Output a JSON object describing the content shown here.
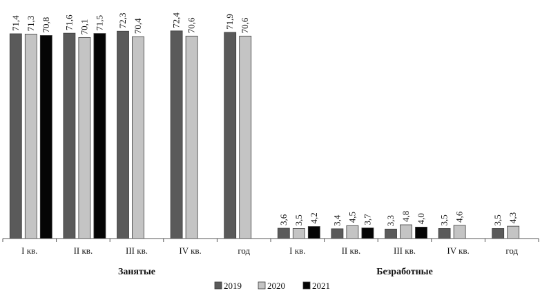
{
  "chart_data": {
    "type": "bar",
    "orientation": "vertical",
    "value_labels_rotated": true,
    "ylim": [
      0,
      75
    ],
    "categories": [
      "I кв.",
      "II кв.",
      "III кв.",
      "IV кв.",
      "год",
      "I кв.",
      "II кв.",
      "III кв.",
      "IV кв.",
      "год"
    ],
    "groups": [
      {
        "label": "Занятые",
        "categories": [
          0,
          1,
          2,
          3,
          4
        ]
      },
      {
        "label": "Безработные",
        "categories": [
          5,
          6,
          7,
          8,
          9
        ]
      }
    ],
    "series": [
      {
        "name": "2019",
        "color": "#5a5a5a",
        "values": [
          71.4,
          71.6,
          72.3,
          72.4,
          71.9,
          3.6,
          3.4,
          3.3,
          3.5,
          3.5
        ],
        "labels": [
          "71,4",
          "71,6",
          "72,3",
          "72,4",
          "71,9",
          "3,6",
          "3,4",
          "3,3",
          "3,5",
          "3,5"
        ]
      },
      {
        "name": "2020",
        "color": "#c4c4c4",
        "values": [
          71.3,
          70.1,
          70.4,
          70.6,
          70.6,
          3.5,
          4.5,
          4.8,
          4.6,
          4.3
        ],
        "labels": [
          "71,3",
          "70,1",
          "70,4",
          "70,6",
          "70,6",
          "3,5",
          "4,5",
          "4,8",
          "4,6",
          "4,3"
        ]
      },
      {
        "name": "2021",
        "color": "#050505",
        "values": [
          70.8,
          71.5,
          null,
          null,
          null,
          4.2,
          3.7,
          4.0,
          null,
          null
        ],
        "labels": [
          "70,8",
          "71,5",
          null,
          null,
          null,
          "4,2",
          "3,7",
          "4,0",
          null,
          null
        ]
      }
    ],
    "legend": {
      "position": "bottom"
    },
    "grid": false
  }
}
